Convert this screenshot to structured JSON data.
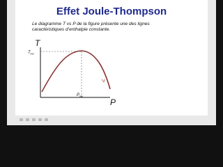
{
  "header": {
    "title": "Effet Joule-Thompson"
  },
  "body": {
    "lines": [
      "Le diagramme T vs P de la figure présente une des lignes",
      "caractéristiques d’enthalpie constante."
    ]
  },
  "diagram": {
    "y_axis_label": "T",
    "x_axis_label": "P",
    "y_marker": {
      "symbol": "T",
      "subscript": "inv"
    },
    "x_marker": {
      "symbol": "P",
      "subscript": "inv"
    }
  }
}
